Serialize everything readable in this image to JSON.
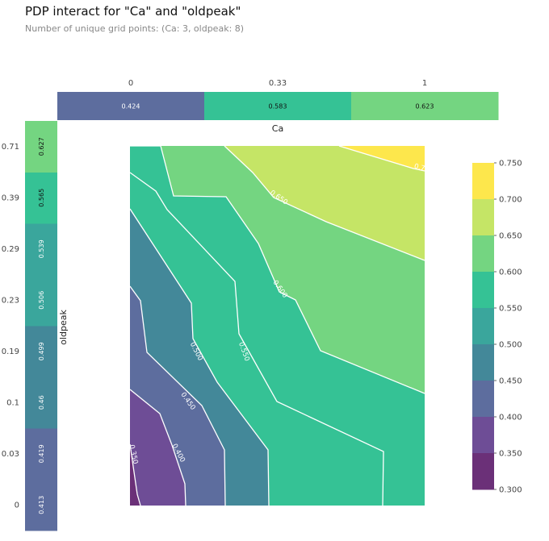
{
  "title": "PDP interact for \"Ca\" and \"oldpeak\"",
  "subtitle": "Number of unique grid points: (Ca: 3, oldpeak: 8)",
  "chart_data": {
    "type": "heatmap",
    "x_feature": "Ca",
    "y_feature": "oldpeak",
    "x_ticks": [
      "0",
      "0.33",
      "1"
    ],
    "y_ticks": [
      "0",
      "0.03",
      "0.1",
      "0.19",
      "0.23",
      "0.29",
      "0.39",
      "0.71"
    ],
    "x_marginal": {
      "values": [
        0.424,
        0.583,
        0.623
      ],
      "labels": [
        "0.424",
        "0.583",
        "0.623"
      ]
    },
    "y_marginal": {
      "values": [
        0.413,
        0.419,
        0.46,
        0.499,
        0.506,
        0.539,
        0.565,
        0.627
      ],
      "labels": [
        "0.413",
        "0.419",
        "0.46",
        "0.499",
        "0.506",
        "0.539",
        "0.565",
        "0.627"
      ]
    },
    "contour_levels": [
      0.3,
      0.35,
      0.4,
      0.45,
      0.5,
      0.55,
      0.6,
      0.65,
      0.7,
      0.75
    ],
    "contour_labels": [
      "0.350",
      "0.400",
      "0.450",
      "0.500",
      "0.550",
      "0.600",
      "0.650",
      "0.7"
    ],
    "colorbar": {
      "ticks": [
        "0.750",
        "0.700",
        "0.650",
        "0.600",
        "0.550",
        "0.500",
        "0.450",
        "0.400",
        "0.350",
        "0.300"
      ],
      "colors": [
        "#fde74c",
        "#c5e566",
        "#74d581",
        "#35c295",
        "#3aa69c",
        "#438899",
        "#5d6d9e",
        "#6e4d96",
        "#6b3078"
      ]
    },
    "colors": {
      "l030": "#6b3078",
      "l035": "#6e4d96",
      "l040": "#5d6d9e",
      "l045": "#438899",
      "l050": "#3aa69c",
      "l055": "#35c295",
      "l060": "#74d581",
      "l065": "#c5e566",
      "l070": "#fde74c"
    }
  }
}
